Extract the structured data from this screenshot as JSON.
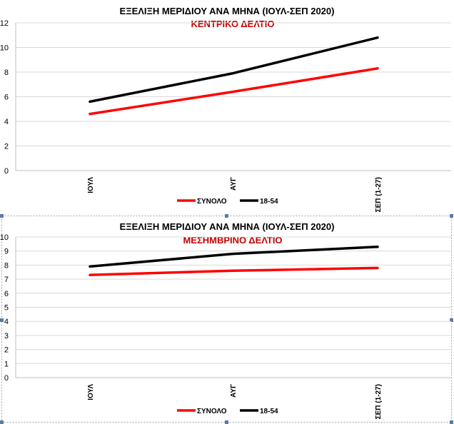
{
  "charts_meta": {
    "colors": {
      "total": "#ff0000",
      "age_18_54": "#000000",
      "subtitle": "#c00000",
      "grid": "#d9d9d9"
    }
  },
  "chart_data": [
    {
      "type": "line",
      "title": "ΕΞΕΛΙΞΗ ΜΕΡΙΔΙΟΥ ΑΝΑ ΜΗΝΑ (ΙΟΥΛ-ΣΕΠ 2020)",
      "subtitle": "ΚΕΝΤΡΙΚΟ ΔΕΛΤΙΟ",
      "categories": [
        "ΙΟΥΛ",
        "ΑΥΓ",
        "ΣΕΠ (1-27)"
      ],
      "series": [
        {
          "name": "ΣΥΝΟΛΟ",
          "color": "#ff0000",
          "values": [
            4.6,
            6.4,
            8.3
          ]
        },
        {
          "name": "18-54",
          "color": "#000000",
          "values": [
            5.6,
            7.9,
            10.8
          ]
        }
      ],
      "ylim": [
        0,
        12
      ],
      "yticks": [
        "0",
        "2",
        "4",
        "6",
        "8",
        "10",
        "12"
      ],
      "ytick_values": [
        0,
        2,
        4,
        6,
        8,
        10,
        12
      ],
      "grid": true,
      "legend_position": "bottom"
    },
    {
      "type": "line",
      "title": "ΕΞΕΛΙΞΗ ΜΕΡΙΔΙΟΥ ΑΝΑ ΜΗΝΑ (ΙΟΥΛ-ΣΕΠ 2020)",
      "subtitle": "ΜΕΣΗΜΒΡΙΝΟ ΔΕΛΤΙΟ",
      "categories": [
        "ΙΟΥΛ",
        "ΑΥΓ",
        "ΣΕΠ (1-27)"
      ],
      "series": [
        {
          "name": "ΣΥΝΟΛΟ",
          "color": "#ff0000",
          "values": [
            7.3,
            7.6,
            7.8
          ]
        },
        {
          "name": "18-54",
          "color": "#000000",
          "values": [
            7.9,
            8.8,
            9.3
          ]
        }
      ],
      "ylim": [
        0,
        10
      ],
      "yticks": [
        "0",
        "1",
        "2",
        "3",
        "4",
        "5",
        "6",
        "7",
        "8",
        "9",
        "10"
      ],
      "ytick_values": [
        0,
        1,
        2,
        3,
        4,
        5,
        6,
        7,
        8,
        9,
        10
      ],
      "grid": true,
      "legend_position": "bottom"
    }
  ]
}
